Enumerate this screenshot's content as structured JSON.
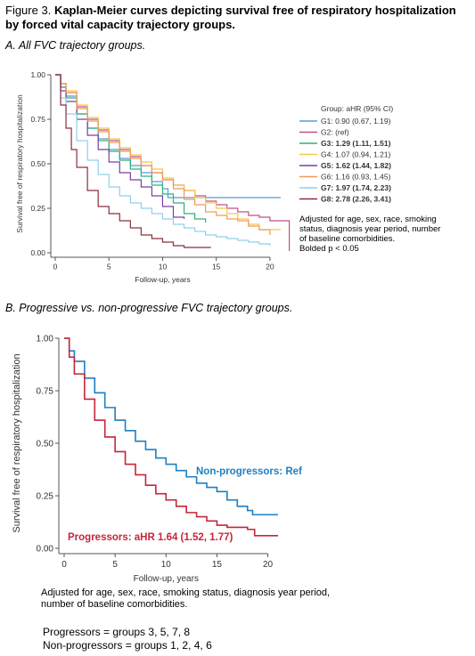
{
  "figure": {
    "title_lead": "Figure 3.",
    "title_text": "Kaplan-Meier curves depicting survival free of respiratory hospitalization by forced vital capacity trajectory groups."
  },
  "chart_data": [
    {
      "type": "line",
      "panel_label": "A. All FVC trajectory groups.",
      "xlabel": "Follow-up, years",
      "ylabel": "Survival free of respiratory hospitalization",
      "xlim": [
        0,
        22
      ],
      "ylim": [
        0,
        1
      ],
      "x_ticks": [
        "0",
        "5",
        "10",
        "15",
        "20"
      ],
      "y_ticks": [
        "0.00",
        "0.25",
        "0.50",
        "0.75",
        "1.00"
      ],
      "legend_title": "Group: aHR (95% CI)",
      "legend_position": "right",
      "series": [
        {
          "name": "G1: 0.90 (0.67, 1.19)",
          "bold": false,
          "color": "#5b9bd5",
          "x": [
            0,
            0.5,
            1,
            2,
            3,
            4,
            5,
            6,
            7,
            8,
            9,
            10,
            10.5,
            12,
            15,
            21
          ],
          "y": [
            1,
            0.93,
            0.88,
            0.78,
            0.7,
            0.64,
            0.58,
            0.53,
            0.49,
            0.45,
            0.4,
            0.36,
            0.31,
            0.31,
            0.31,
            0.31
          ]
        },
        {
          "name": "G2: (ref)",
          "bold": false,
          "color": "#c0508a",
          "x": [
            0,
            0.5,
            1,
            2,
            3,
            4,
            5,
            6,
            7,
            8,
            9,
            10,
            11,
            12,
            13,
            14,
            15,
            16,
            17,
            18,
            19,
            20,
            21,
            21.8,
            21.8
          ],
          "y": [
            1,
            0.95,
            0.9,
            0.82,
            0.75,
            0.69,
            0.63,
            0.58,
            0.54,
            0.49,
            0.45,
            0.41,
            0.38,
            0.35,
            0.32,
            0.29,
            0.27,
            0.25,
            0.23,
            0.21,
            0.2,
            0.18,
            0.18,
            0.18,
            0.01
          ]
        },
        {
          "name": "G3: 1.29 (1.11, 1.51)",
          "bold": true,
          "color": "#2eb07a",
          "x": [
            0,
            0.5,
            1,
            2,
            3,
            4,
            5,
            6,
            7,
            8,
            9,
            10,
            11,
            12,
            13,
            14
          ],
          "y": [
            1,
            0.93,
            0.87,
            0.78,
            0.7,
            0.63,
            0.57,
            0.52,
            0.47,
            0.43,
            0.38,
            0.33,
            0.28,
            0.22,
            0.19,
            0.17
          ]
        },
        {
          "name": "G4: 1.07 (0.94, 1.21)",
          "bold": false,
          "color": "#f2c84b",
          "x": [
            0,
            0.5,
            1,
            2,
            3,
            4,
            5,
            6,
            7,
            8,
            9,
            10,
            11,
            12,
            13,
            14,
            15,
            16,
            17,
            18,
            19,
            20,
            21
          ],
          "y": [
            1,
            0.95,
            0.91,
            0.83,
            0.76,
            0.7,
            0.64,
            0.59,
            0.55,
            0.51,
            0.47,
            0.42,
            0.38,
            0.35,
            0.31,
            0.28,
            0.25,
            0.22,
            0.19,
            0.16,
            0.13,
            0.13,
            0.13
          ]
        },
        {
          "name": "G5: 1.62 (1.44, 1.82)",
          "bold": true,
          "color": "#7a3fa0",
          "x": [
            0,
            0.5,
            1,
            2,
            3,
            4,
            5,
            6,
            7,
            8,
            9,
            10,
            11,
            12
          ],
          "y": [
            1,
            0.91,
            0.85,
            0.75,
            0.66,
            0.58,
            0.51,
            0.45,
            0.41,
            0.37,
            0.32,
            0.26,
            0.2,
            0.19
          ]
        },
        {
          "name": "G6: 1.16 (0.93, 1.45)",
          "bold": false,
          "color": "#ef9a5a",
          "x": [
            0,
            0.5,
            1,
            2,
            3,
            4,
            5,
            6,
            7,
            8,
            9,
            10,
            11,
            12,
            13,
            14,
            15,
            16,
            17,
            18,
            19,
            20
          ],
          "y": [
            1,
            0.95,
            0.9,
            0.81,
            0.74,
            0.68,
            0.62,
            0.57,
            0.53,
            0.49,
            0.45,
            0.41,
            0.36,
            0.3,
            0.27,
            0.23,
            0.21,
            0.19,
            0.18,
            0.15,
            0.13,
            0.1
          ]
        },
        {
          "name": "G7: 1.97 (1.74, 2.23)",
          "bold": true,
          "color": "#8fd0ee",
          "x": [
            0,
            0.5,
            1,
            2,
            3,
            4,
            5,
            6,
            7,
            8,
            9,
            10,
            11,
            12,
            13,
            14,
            15,
            16,
            17,
            18,
            19,
            20
          ],
          "y": [
            1,
            0.87,
            0.78,
            0.63,
            0.52,
            0.44,
            0.37,
            0.32,
            0.28,
            0.25,
            0.22,
            0.19,
            0.16,
            0.14,
            0.12,
            0.1,
            0.09,
            0.08,
            0.07,
            0.06,
            0.05,
            0.04
          ]
        },
        {
          "name": "G8: 2.78 (2.26, 3.41)",
          "bold": true,
          "color": "#8b2f3f",
          "x": [
            0,
            0.5,
            1,
            1.5,
            2,
            3,
            4,
            5,
            6,
            7,
            8,
            9,
            10,
            11,
            12,
            14.5
          ],
          "y": [
            1,
            0.83,
            0.7,
            0.58,
            0.48,
            0.35,
            0.26,
            0.22,
            0.18,
            0.14,
            0.1,
            0.08,
            0.06,
            0.04,
            0.03,
            0.03
          ]
        }
      ],
      "note_lines": [
        "Adjusted for age, sex, race, smoking",
        "status, diagnosis year period, number",
        "of baseline comorbidities.",
        "Bolded p < 0.05"
      ]
    },
    {
      "type": "line",
      "panel_label": "B. Progressive vs. non-progressive FVC trajectory groups.",
      "xlabel": "Follow-up, years",
      "ylabel": "Survival free of respiratory hospitalization",
      "xlim": [
        0,
        21
      ],
      "ylim": [
        0,
        1
      ],
      "x_ticks": [
        "0",
        "5",
        "10",
        "15",
        "20"
      ],
      "y_ticks": [
        "0.00",
        "0.25",
        "0.50",
        "0.75",
        "1.00"
      ],
      "series": [
        {
          "name": "Non-progressors: Ref",
          "color": "#1f7fc4",
          "x": [
            0,
            0.5,
            1,
            2,
            3,
            4,
            5,
            6,
            7,
            8,
            9,
            10,
            11,
            12,
            13,
            14,
            15,
            16,
            17,
            18,
            18.5,
            19,
            20,
            21
          ],
          "y": [
            1,
            0.94,
            0.89,
            0.81,
            0.74,
            0.67,
            0.61,
            0.56,
            0.51,
            0.47,
            0.43,
            0.4,
            0.37,
            0.34,
            0.31,
            0.29,
            0.27,
            0.23,
            0.2,
            0.18,
            0.16,
            0.16,
            0.16,
            0.16
          ]
        },
        {
          "name": "Progressors: aHR 1.64 (1.52, 1.77)",
          "color": "#c4263a",
          "x": [
            0,
            0.5,
            1,
            2,
            3,
            4,
            5,
            6,
            7,
            8,
            9,
            10,
            11,
            12,
            13,
            14,
            15,
            16,
            17,
            18,
            18.7,
            19,
            20,
            21
          ],
          "y": [
            1,
            0.91,
            0.83,
            0.71,
            0.61,
            0.53,
            0.46,
            0.4,
            0.35,
            0.3,
            0.26,
            0.23,
            0.2,
            0.17,
            0.15,
            0.13,
            0.11,
            0.1,
            0.1,
            0.09,
            0.06,
            0.06,
            0.06,
            0.06
          ]
        }
      ],
      "note_lines": [
        "Adjusted for age, sex, race, smoking status, diagnosis year period,",
        "number of baseline comorbidities."
      ]
    }
  ],
  "groups_definition": [
    "Progressors = groups 3, 5, 7, 8",
    "Non-progressors = groups 1, 2, 4, 6"
  ]
}
